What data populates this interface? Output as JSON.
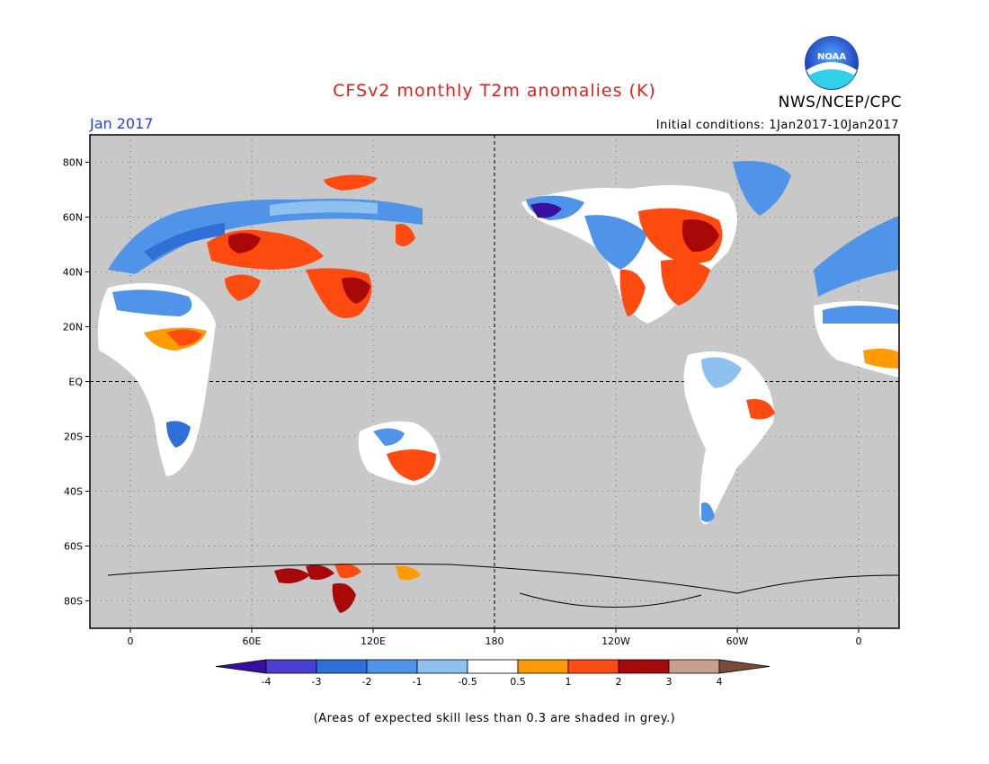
{
  "header": {
    "title": "CFSv2 monthly T2m anomalies (K)",
    "agency": "NWS/NCEP/CPC",
    "logo_text": "NOAA",
    "month": "Jan 2017",
    "initial_conditions": "Initial conditions: 1Jan2017-10Jan2017"
  },
  "footnote": "(Areas of expected skill less than 0.3 are shaded in grey.)",
  "map": {
    "lat_labels": [
      "80N",
      "60N",
      "40N",
      "20N",
      "EQ",
      "20S",
      "40S",
      "60S",
      "80S"
    ],
    "lat_values": [
      80,
      60,
      40,
      20,
      0,
      -20,
      -40,
      -60,
      -80
    ],
    "lon_labels": [
      "0",
      "60E",
      "120E",
      "180",
      "120W",
      "60W",
      "0"
    ],
    "lon_values": [
      0,
      60,
      120,
      180,
      240,
      300,
      360
    ],
    "lon_range": [
      -20,
      380
    ],
    "lat_range": [
      -90,
      90
    ]
  },
  "colorbar": {
    "levels": [
      "-4",
      "-3",
      "-2",
      "-1",
      "-0.5",
      "0.5",
      "1",
      "2",
      "3",
      "4"
    ],
    "colors": [
      "#3a0fa0",
      "#4a3fd0",
      "#2f6fd8",
      "#4f94e8",
      "#8ec0f0",
      "#ffffff",
      "#ff9a00",
      "#ff4a10",
      "#a80808",
      "#c8a090",
      "#7a4a3a"
    ]
  },
  "colors": {
    "ocean_grey": "#c8c8c8",
    "title_red": "#e0201a",
    "month_blue": "#2b3fd6"
  }
}
